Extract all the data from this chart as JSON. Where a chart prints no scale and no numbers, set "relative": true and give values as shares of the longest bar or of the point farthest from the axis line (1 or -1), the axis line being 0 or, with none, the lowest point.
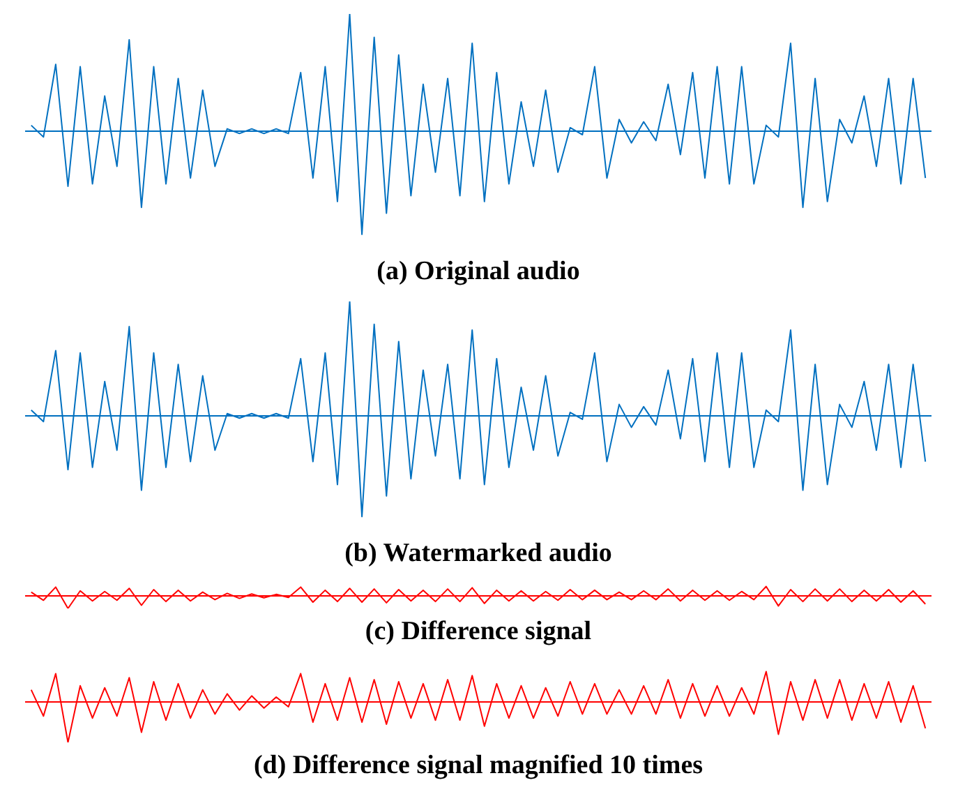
{
  "chart_data": [
    {
      "type": "line",
      "relative": true,
      "title": "(a) Original audio",
      "ref_lines": [
        {
          "axis": "y",
          "value": 0,
          "color": "#0070c0"
        }
      ],
      "categories": [
        null,
        null,
        null,
        null,
        null,
        null,
        null,
        null,
        null,
        null,
        null,
        null,
        null,
        null,
        null,
        null,
        null,
        null,
        null,
        null,
        null,
        null,
        null,
        null,
        null,
        null,
        null,
        null,
        null,
        null,
        null,
        null,
        null,
        null,
        null,
        null,
        null,
        null,
        null,
        null,
        null,
        null,
        null,
        null,
        null,
        null,
        null,
        null,
        null,
        null,
        null,
        null,
        null,
        null,
        null,
        null,
        null,
        null,
        null,
        null,
        null,
        null,
        null,
        null,
        null,
        null,
        null,
        null,
        null,
        null,
        null,
        null,
        null,
        null
      ],
      "series": [
        {
          "color": "#0070c0",
          "values": [
            0.05,
            -0.05,
            0.57,
            -0.47,
            0.55,
            -0.45,
            0.3,
            -0.3,
            0.78,
            -0.65,
            0.55,
            -0.45,
            0.45,
            -0.4,
            0.35,
            -0.3,
            0.02,
            -0.02,
            0.02,
            -0.02,
            0.02,
            -0.02,
            0.5,
            -0.4,
            0.55,
            -0.6,
            1,
            -0.88,
            0.8,
            -0.7,
            0.65,
            -0.55,
            0.4,
            -0.35,
            0.45,
            -0.55,
            0.75,
            -0.6,
            0.5,
            -0.45,
            0.25,
            -0.3,
            0.35,
            -0.35,
            0.03,
            -0.03,
            0.55,
            -0.4,
            0.1,
            -0.1,
            0.08,
            -0.08,
            0.4,
            -0.2,
            0.5,
            -0.4,
            0.55,
            -0.45,
            0.55,
            -0.45,
            0.05,
            -0.05,
            0.75,
            -0.65,
            0.45,
            -0.6,
            0.1,
            -0.1,
            0.3,
            -0.3,
            0.45,
            -0.45,
            0.45,
            -0.4
          ]
        }
      ]
    },
    {
      "type": "line",
      "relative": true,
      "title": "(b) Watermarked audio",
      "ref_lines": [
        {
          "axis": "y",
          "value": 0,
          "color": "#0070c0"
        }
      ],
      "categories": [
        null,
        null,
        null,
        null,
        null,
        null,
        null,
        null,
        null,
        null,
        null,
        null,
        null,
        null,
        null,
        null,
        null,
        null,
        null,
        null,
        null,
        null,
        null,
        null,
        null,
        null,
        null,
        null,
        null,
        null,
        null,
        null,
        null,
        null,
        null,
        null,
        null,
        null,
        null,
        null,
        null,
        null,
        null,
        null,
        null,
        null,
        null,
        null,
        null,
        null,
        null,
        null,
        null,
        null,
        null,
        null,
        null,
        null,
        null,
        null,
        null,
        null,
        null,
        null,
        null,
        null,
        null,
        null,
        null,
        null,
        null,
        null,
        null,
        null
      ],
      "series": [
        {
          "color": "#0070c0",
          "values": [
            0.05,
            -0.05,
            0.57,
            -0.47,
            0.55,
            -0.45,
            0.3,
            -0.3,
            0.78,
            -0.65,
            0.55,
            -0.45,
            0.45,
            -0.4,
            0.35,
            -0.3,
            0.02,
            -0.02,
            0.02,
            -0.02,
            0.02,
            -0.02,
            0.5,
            -0.4,
            0.55,
            -0.6,
            1,
            -0.88,
            0.8,
            -0.7,
            0.65,
            -0.55,
            0.4,
            -0.35,
            0.45,
            -0.55,
            0.75,
            -0.6,
            0.5,
            -0.45,
            0.25,
            -0.3,
            0.35,
            -0.35,
            0.03,
            -0.03,
            0.55,
            -0.4,
            0.1,
            -0.1,
            0.08,
            -0.08,
            0.4,
            -0.2,
            0.5,
            -0.4,
            0.55,
            -0.45,
            0.55,
            -0.45,
            0.05,
            -0.05,
            0.75,
            -0.65,
            0.45,
            -0.6,
            0.1,
            -0.1,
            0.3,
            -0.3,
            0.45,
            -0.45,
            0.45,
            -0.4
          ]
        }
      ]
    },
    {
      "type": "line",
      "relative": true,
      "title": "(c) Difference signal",
      "ref_lines": [
        {
          "axis": "y",
          "value": 0,
          "color": "#ff0000"
        }
      ],
      "categories": [
        null,
        null,
        null,
        null,
        null,
        null,
        null,
        null,
        null,
        null,
        null,
        null,
        null,
        null,
        null,
        null,
        null,
        null,
        null,
        null,
        null,
        null,
        null,
        null,
        null,
        null,
        null,
        null,
        null,
        null,
        null,
        null,
        null,
        null,
        null,
        null,
        null,
        null,
        null,
        null,
        null,
        null,
        null,
        null,
        null,
        null,
        null,
        null,
        null,
        null,
        null,
        null,
        null,
        null,
        null,
        null,
        null,
        null,
        null,
        null,
        null,
        null,
        null,
        null,
        null,
        null,
        null,
        null,
        null,
        null,
        null,
        null,
        null,
        null
      ],
      "series": [
        {
          "color": "#ff0000",
          "values": [
            0.3,
            -0.35,
            0.7,
            -1,
            0.4,
            -0.4,
            0.35,
            -0.35,
            0.6,
            -0.75,
            0.5,
            -0.45,
            0.45,
            -0.4,
            0.3,
            -0.3,
            0.2,
            -0.2,
            0.15,
            -0.15,
            0.12,
            -0.12,
            0.7,
            -0.5,
            0.45,
            -0.45,
            0.6,
            -0.5,
            0.55,
            -0.55,
            0.5,
            -0.4,
            0.45,
            -0.45,
            0.55,
            -0.45,
            0.65,
            -0.6,
            0.45,
            -0.4,
            0.4,
            -0.4,
            0.35,
            -0.35,
            0.5,
            -0.3,
            0.45,
            -0.3,
            0.3,
            -0.3,
            0.4,
            -0.3,
            0.55,
            -0.4,
            0.45,
            -0.35,
            0.4,
            -0.35,
            0.35,
            -0.3,
            0.75,
            -0.8,
            0.5,
            -0.45,
            0.55,
            -0.4,
            0.55,
            -0.45,
            0.45,
            -0.4,
            0.5,
            -0.5,
            0.4,
            -0.65
          ]
        }
      ]
    },
    {
      "type": "line",
      "relative": true,
      "title": "(d) Difference signal magnified 10 times",
      "ref_lines": [
        {
          "axis": "y",
          "value": 0,
          "color": "#ff0000"
        }
      ],
      "categories": [
        null,
        null,
        null,
        null,
        null,
        null,
        null,
        null,
        null,
        null,
        null,
        null,
        null,
        null,
        null,
        null,
        null,
        null,
        null,
        null,
        null,
        null,
        null,
        null,
        null,
        null,
        null,
        null,
        null,
        null,
        null,
        null,
        null,
        null,
        null,
        null,
        null,
        null,
        null,
        null,
        null,
        null,
        null,
        null,
        null,
        null,
        null,
        null,
        null,
        null,
        null,
        null,
        null,
        null,
        null,
        null,
        null,
        null,
        null,
        null,
        null,
        null,
        null,
        null,
        null,
        null,
        null,
        null,
        null,
        null,
        null,
        null,
        null,
        null
      ],
      "series": [
        {
          "color": "#ff0000",
          "values": [
            0.3,
            -0.35,
            0.7,
            -1,
            0.4,
            -0.4,
            0.35,
            -0.35,
            0.6,
            -0.75,
            0.5,
            -0.45,
            0.45,
            -0.4,
            0.3,
            -0.3,
            0.2,
            -0.2,
            0.15,
            -0.15,
            0.12,
            -0.12,
            0.7,
            -0.5,
            0.45,
            -0.45,
            0.6,
            -0.5,
            0.55,
            -0.55,
            0.5,
            -0.4,
            0.45,
            -0.45,
            0.55,
            -0.45,
            0.65,
            -0.6,
            0.45,
            -0.4,
            0.4,
            -0.4,
            0.35,
            -0.35,
            0.5,
            -0.3,
            0.45,
            -0.3,
            0.3,
            -0.3,
            0.4,
            -0.3,
            0.55,
            -0.4,
            0.45,
            -0.35,
            0.4,
            -0.35,
            0.35,
            -0.3,
            0.75,
            -0.8,
            0.5,
            -0.45,
            0.55,
            -0.4,
            0.55,
            -0.45,
            0.45,
            -0.4,
            0.5,
            -0.5,
            0.4,
            -0.65
          ]
        }
      ]
    }
  ]
}
